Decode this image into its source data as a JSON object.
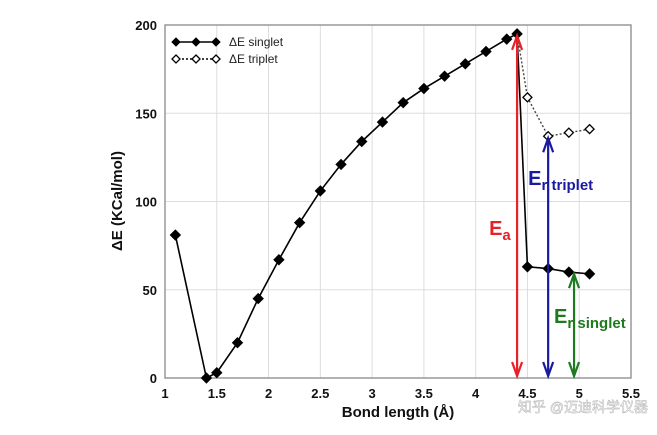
{
  "chart_data": {
    "type": "line",
    "xlabel": "Bond length (Å)",
    "ylabel": "ΔE (KCal/mol)",
    "xlim": [
      1,
      5.5
    ],
    "ylim": [
      0,
      200
    ],
    "xticks": [
      "1",
      "1.5",
      "2",
      "2.5",
      "3",
      "3.5",
      "4",
      "4.5",
      "5",
      "5.5"
    ],
    "yticks": [
      "0",
      "50",
      "100",
      "150",
      "200"
    ],
    "grid": true,
    "legend_position": "top-left",
    "series": [
      {
        "name": "ΔE singlet",
        "style": "solid-filled-diamond",
        "x": [
          1.1,
          1.4,
          1.5,
          1.7,
          1.9,
          2.1,
          2.3,
          2.5,
          2.7,
          2.9,
          3.1,
          3.3,
          3.5,
          3.7,
          3.9,
          4.1,
          4.3,
          4.4,
          4.5,
          4.7,
          4.9,
          5.1
        ],
        "y": [
          81,
          0,
          3,
          20,
          45,
          67,
          88,
          106,
          121,
          134,
          145,
          156,
          164,
          171,
          178,
          185,
          192,
          195,
          63,
          62,
          60,
          59
        ]
      },
      {
        "name": "ΔE triplet",
        "style": "dotted-open-diamond",
        "x": [
          4.4,
          4.5,
          4.7,
          4.9,
          5.1
        ],
        "y": [
          195,
          159,
          137,
          139,
          141
        ]
      }
    ],
    "annotations": [
      {
        "label": "E",
        "sub": "a",
        "color": "#e8202a",
        "x": 4.4,
        "y_from": 0,
        "y_to": 195
      },
      {
        "label": "E",
        "sub": "r triplet",
        "color": "#1a1aa0",
        "x": 4.7,
        "y_from": 0,
        "y_to": 137
      },
      {
        "label": "E",
        "sub": "r singlet",
        "color": "#1f7a1f",
        "x": 4.95,
        "y_from": 0,
        "y_to": 60
      }
    ]
  },
  "watermark": "知乎 @迈迪科学仪器"
}
